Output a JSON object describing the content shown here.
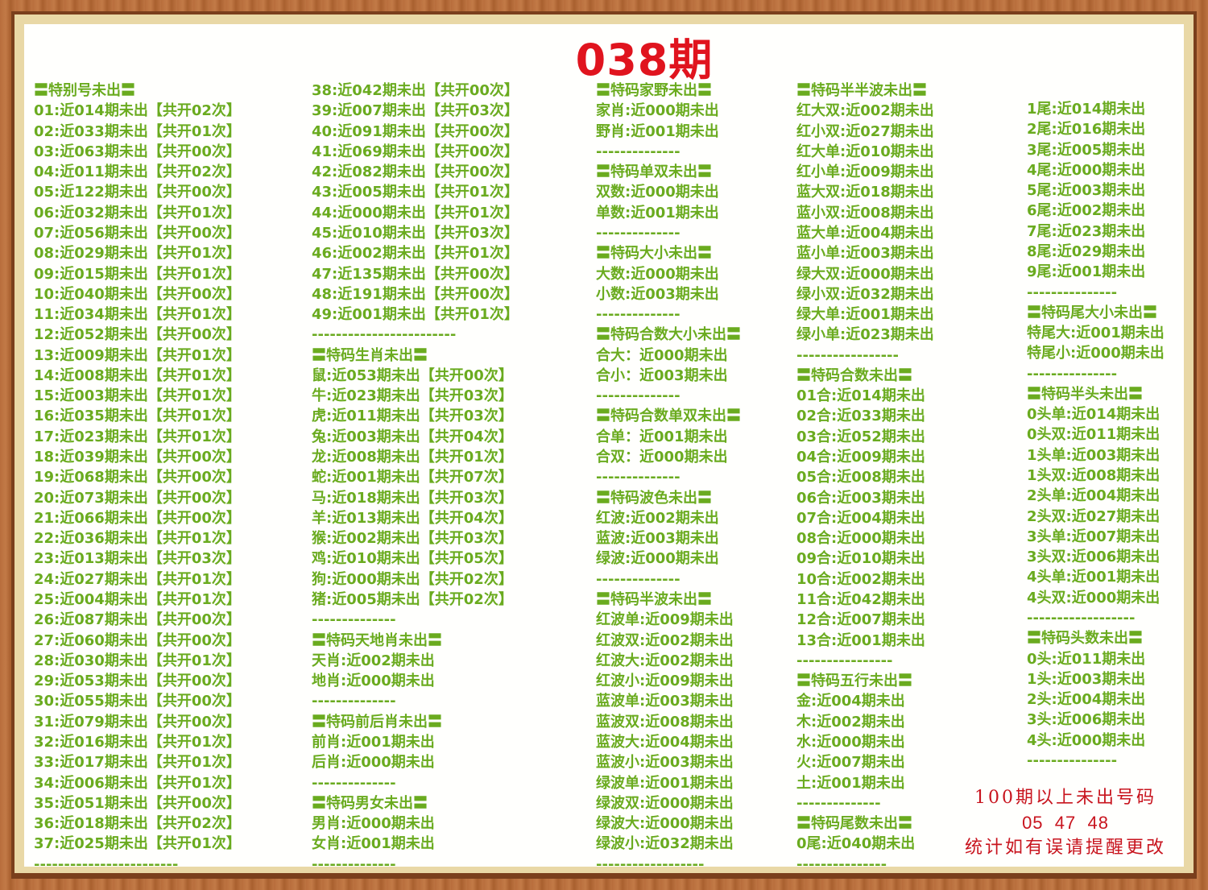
{
  "title": "038期",
  "colors": {
    "text": "#6aab1f",
    "title": "#e0141e",
    "note": "#c8141e",
    "frame": "#b86d3c"
  },
  "columns": [
    [
      {
        "t": "h",
        "v": "〓特别号未出〓"
      },
      {
        "v": "01:近014期未出【共开02次】"
      },
      {
        "v": "02:近033期未出【共开01次】"
      },
      {
        "v": "03:近063期未出【共开00次】"
      },
      {
        "v": "04:近011期未出【共开02次】"
      },
      {
        "v": "05:近122期未出【共开00次】"
      },
      {
        "v": "06:近032期未出【共开01次】"
      },
      {
        "v": "07:近056期未出【共开00次】"
      },
      {
        "v": "08:近029期未出【共开01次】"
      },
      {
        "v": "09:近015期未出【共开01次】"
      },
      {
        "v": "10:近040期未出【共开00次】"
      },
      {
        "v": "11:近034期未出【共开01次】"
      },
      {
        "v": "12:近052期未出【共开00次】"
      },
      {
        "v": "13:近009期未出【共开01次】"
      },
      {
        "v": "14:近008期未出【共开01次】"
      },
      {
        "v": "15:近003期未出【共开01次】"
      },
      {
        "v": "16:近035期未出【共开01次】"
      },
      {
        "v": "17:近023期未出【共开01次】"
      },
      {
        "v": "18:近039期未出【共开00次】"
      },
      {
        "v": "19:近068期未出【共开00次】"
      },
      {
        "v": "20:近073期未出【共开00次】"
      },
      {
        "v": "21:近066期未出【共开00次】"
      },
      {
        "v": "22:近036期未出【共开01次】"
      },
      {
        "v": "23:近013期未出【共开03次】"
      },
      {
        "v": "24:近027期未出【共开01次】"
      },
      {
        "v": "25:近004期未出【共开01次】"
      },
      {
        "v": "26:近087期未出【共开00次】"
      },
      {
        "v": "27:近060期未出【共开00次】"
      },
      {
        "v": "28:近030期未出【共开01次】"
      },
      {
        "v": "29:近053期未出【共开00次】"
      },
      {
        "v": "30:近055期未出【共开00次】"
      },
      {
        "v": "31:近079期未出【共开00次】"
      },
      {
        "v": "32:近016期未出【共开01次】"
      },
      {
        "v": "33:近017期未出【共开01次】"
      },
      {
        "v": "34:近006期未出【共开01次】"
      },
      {
        "v": "35:近051期未出【共开00次】"
      },
      {
        "v": "36:近018期未出【共开02次】"
      },
      {
        "v": "37:近025期未出【共开01次】"
      },
      {
        "t": "d",
        "v": "------------------------"
      }
    ],
    [
      {
        "v": "38:近042期未出【共开00次】"
      },
      {
        "v": "39:近007期未出【共开03次】"
      },
      {
        "v": "40:近091期未出【共开00次】"
      },
      {
        "v": "41:近069期未出【共开00次】"
      },
      {
        "v": "42:近082期未出【共开00次】"
      },
      {
        "v": "43:近005期未出【共开01次】"
      },
      {
        "v": "44:近000期未出【共开01次】"
      },
      {
        "v": "45:近010期未出【共开03次】"
      },
      {
        "v": "46:近002期未出【共开01次】"
      },
      {
        "v": "47:近135期未出【共开00次】"
      },
      {
        "v": "48:近191期未出【共开00次】"
      },
      {
        "v": "49:近001期未出【共开01次】"
      },
      {
        "t": "d",
        "v": "------------------------"
      },
      {
        "t": "h",
        "v": "〓特码生肖未出〓"
      },
      {
        "v": "鼠:近053期未出【共开00次】"
      },
      {
        "v": "牛:近023期未出【共开03次】"
      },
      {
        "v": "虎:近011期未出【共开03次】"
      },
      {
        "v": "兔:近003期未出【共开04次】"
      },
      {
        "v": "龙:近008期未出【共开01次】"
      },
      {
        "v": "蛇:近001期未出【共开07次】"
      },
      {
        "v": "马:近018期未出【共开03次】"
      },
      {
        "v": "羊:近013期未出【共开04次】"
      },
      {
        "v": "猴:近002期未出【共开03次】"
      },
      {
        "v": "鸡:近010期未出【共开05次】"
      },
      {
        "v": "狗:近000期未出【共开02次】"
      },
      {
        "v": "猪:近005期未出【共开02次】"
      },
      {
        "t": "d",
        "v": "--------------"
      },
      {
        "t": "h",
        "v": "〓特码天地肖未出〓"
      },
      {
        "v": "天肖:近002期未出"
      },
      {
        "v": "地肖:近000期未出"
      },
      {
        "t": "d",
        "v": "--------------"
      },
      {
        "t": "h",
        "v": "〓特码前后肖未出〓"
      },
      {
        "v": "前肖:近001期未出"
      },
      {
        "v": "后肖:近000期未出"
      },
      {
        "t": "d",
        "v": "--------------"
      },
      {
        "t": "h",
        "v": "〓特码男女未出〓"
      },
      {
        "v": "男肖:近000期未出"
      },
      {
        "v": "女肖:近001期未出"
      },
      {
        "t": "d",
        "v": "--------------"
      }
    ],
    [
      {
        "t": "h",
        "v": "〓特码家野未出〓"
      },
      {
        "v": "家肖:近000期未出"
      },
      {
        "v": "野肖:近001期未出"
      },
      {
        "t": "d",
        "v": "--------------"
      },
      {
        "t": "h",
        "v": "〓特码单双未出〓"
      },
      {
        "v": "双数:近000期未出"
      },
      {
        "v": "单数:近001期未出"
      },
      {
        "t": "d",
        "v": "--------------"
      },
      {
        "t": "h",
        "v": "〓特码大小未出〓"
      },
      {
        "v": "大数:近000期未出"
      },
      {
        "v": "小数:近003期未出"
      },
      {
        "t": "d",
        "v": "--------------"
      },
      {
        "t": "h",
        "v": "〓特码合数大小未出〓"
      },
      {
        "v": "合大：近000期未出"
      },
      {
        "v": "合小：近003期未出"
      },
      {
        "t": "d",
        "v": "--------------"
      },
      {
        "t": "h",
        "v": "〓特码合数单双未出〓"
      },
      {
        "v": "合单：近001期未出"
      },
      {
        "v": "合双：近000期未出"
      },
      {
        "t": "d",
        "v": "--------------"
      },
      {
        "t": "h",
        "v": "〓特码波色未出〓"
      },
      {
        "v": "红波:近002期未出"
      },
      {
        "v": "蓝波:近003期未出"
      },
      {
        "v": "绿波:近000期未出"
      },
      {
        "t": "d",
        "v": "--------------"
      },
      {
        "t": "h",
        "v": "〓特码半波未出〓"
      },
      {
        "v": "红波单:近009期未出"
      },
      {
        "v": "红波双:近002期未出"
      },
      {
        "v": "红波大:近002期未出"
      },
      {
        "v": "红波小:近009期未出"
      },
      {
        "v": "蓝波单:近003期未出"
      },
      {
        "v": "蓝波双:近008期未出"
      },
      {
        "v": "蓝波大:近004期未出"
      },
      {
        "v": "蓝波小:近003期未出"
      },
      {
        "v": "绿波单:近001期未出"
      },
      {
        "v": "绿波双:近000期未出"
      },
      {
        "v": "绿波大:近000期未出"
      },
      {
        "v": "绿波小:近032期未出"
      },
      {
        "t": "d",
        "v": "------------------"
      }
    ],
    [
      {
        "t": "h",
        "v": "〓特码半半波未出〓"
      },
      {
        "v": "红大双:近002期未出"
      },
      {
        "v": "红小双:近027期未出"
      },
      {
        "v": "红大单:近010期未出"
      },
      {
        "v": "红小单:近009期未出"
      },
      {
        "v": "蓝大双:近018期未出"
      },
      {
        "v": "蓝小双:近008期未出"
      },
      {
        "v": "蓝大单:近004期未出"
      },
      {
        "v": "蓝小单:近003期未出"
      },
      {
        "v": "绿大双:近000期未出"
      },
      {
        "v": "绿小双:近032期未出"
      },
      {
        "v": "绿大单:近001期未出"
      },
      {
        "v": "绿小单:近023期未出"
      },
      {
        "t": "d",
        "v": "-----------------"
      },
      {
        "t": "h",
        "v": "〓特码合数未出〓"
      },
      {
        "v": "01合:近014期未出"
      },
      {
        "v": "02合:近033期未出"
      },
      {
        "v": "03合:近052期未出"
      },
      {
        "v": "04合:近009期未出"
      },
      {
        "v": "05合:近008期未出"
      },
      {
        "v": "06合:近003期未出"
      },
      {
        "v": "07合:近004期未出"
      },
      {
        "v": "08合:近000期未出"
      },
      {
        "v": "09合:近010期未出"
      },
      {
        "v": "10合:近002期未出"
      },
      {
        "v": "11合:近042期未出"
      },
      {
        "v": "12合:近007期未出"
      },
      {
        "v": "13合:近001期未出"
      },
      {
        "t": "d",
        "v": "----------------"
      },
      {
        "t": "h",
        "v": "〓特码五行未出〓"
      },
      {
        "v": "金:近004期未出"
      },
      {
        "v": "木:近002期未出"
      },
      {
        "v": "水:近000期未出"
      },
      {
        "v": "火:近007期未出"
      },
      {
        "v": "土:近001期未出"
      },
      {
        "t": "d",
        "v": "--------------"
      },
      {
        "t": "h",
        "v": "〓特码尾数未出〓"
      },
      {
        "v": "0尾:近040期未出"
      },
      {
        "t": "d",
        "v": "---------------"
      }
    ],
    [
      {
        "v": "1尾:近014期未出"
      },
      {
        "v": "2尾:近016期未出"
      },
      {
        "v": "3尾:近005期未出"
      },
      {
        "v": "4尾:近000期未出"
      },
      {
        "v": "5尾:近003期未出"
      },
      {
        "v": "6尾:近002期未出"
      },
      {
        "v": "7尾:近023期未出"
      },
      {
        "v": "8尾:近029期未出"
      },
      {
        "v": "9尾:近001期未出"
      },
      {
        "t": "d",
        "v": "---------------"
      },
      {
        "t": "h",
        "v": "〓特码尾大小未出〓"
      },
      {
        "v": "特尾大:近001期未出"
      },
      {
        "v": "特尾小:近000期未出"
      },
      {
        "t": "d",
        "v": "---------------"
      },
      {
        "t": "h",
        "v": "〓特码半头未出〓"
      },
      {
        "v": "0头单:近014期未出"
      },
      {
        "v": "0头双:近011期未出"
      },
      {
        "v": "1头单:近003期未出"
      },
      {
        "v": "1头双:近008期未出"
      },
      {
        "v": "2头单:近004期未出"
      },
      {
        "v": "2头双:近027期未出"
      },
      {
        "v": "3头单:近007期未出"
      },
      {
        "v": "3头双:近006期未出"
      },
      {
        "v": "4头单:近001期未出"
      },
      {
        "v": "4头双:近000期未出"
      },
      {
        "t": "d",
        "v": "------------------"
      },
      {
        "t": "h",
        "v": "〓特码头数未出〓"
      },
      {
        "v": "0头:近011期未出"
      },
      {
        "v": "1头:近003期未出"
      },
      {
        "v": "2头:近004期未出"
      },
      {
        "v": "3头:近006期未出"
      },
      {
        "v": "4头:近000期未出"
      },
      {
        "t": "d",
        "v": "---------------"
      }
    ]
  ],
  "note": {
    "line1": "100期以上未出号码",
    "line2": "05  47  48",
    "line3": "统计如有误请提醒更改"
  }
}
